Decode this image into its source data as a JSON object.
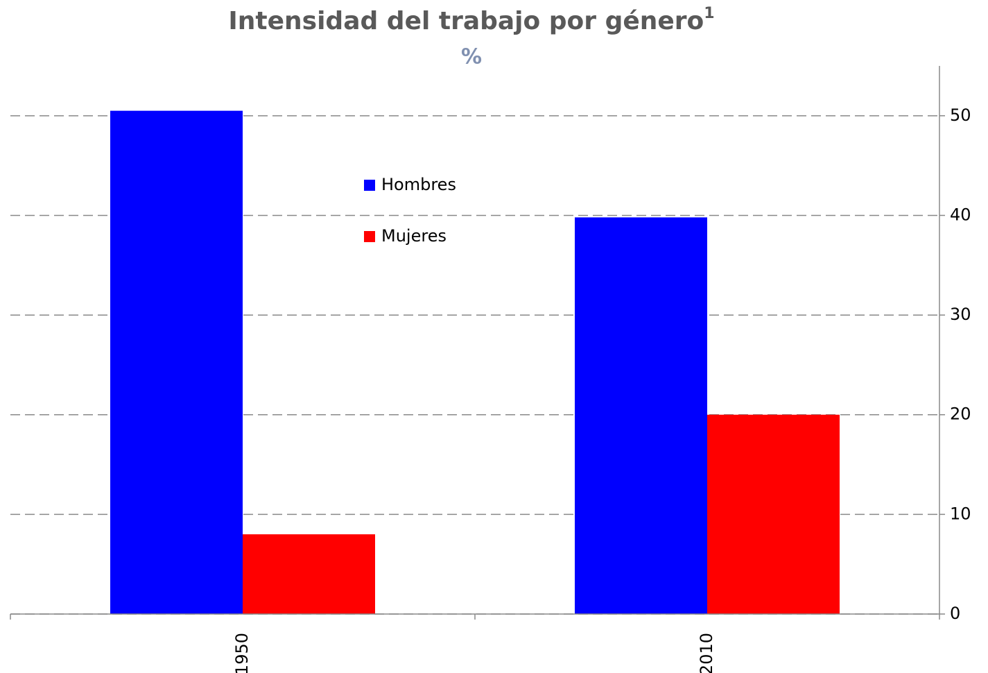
{
  "chart_data": {
    "type": "bar",
    "title": "Intensidad del trabajo por género",
    "title_superscript": "1",
    "subtitle": "%",
    "categories": [
      "1950",
      "2010"
    ],
    "series": [
      {
        "name": "Hombres",
        "color": "#0000ff",
        "values": [
          50.5,
          39.8
        ]
      },
      {
        "name": "Mujeres",
        "color": "#ff0000",
        "values": [
          8.0,
          20.0
        ]
      }
    ],
    "ylim": [
      0,
      55
    ],
    "yticks": [
      0,
      10,
      20,
      30,
      40,
      50
    ],
    "grid": true,
    "y_axis_side": "right"
  }
}
